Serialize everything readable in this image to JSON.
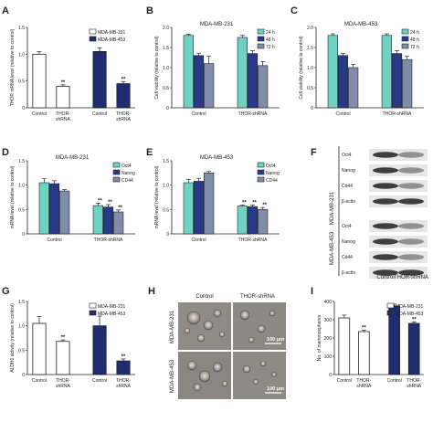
{
  "colors": {
    "white_bar": "#ffffff",
    "navy": "#1f2d6e",
    "teal": "#6fd3c4",
    "navy2": "#283a86",
    "slate": "#7f8da8",
    "axis": "#222222"
  },
  "panels": {
    "A": {
      "letter": "A"
    },
    "B": {
      "letter": "B"
    },
    "C": {
      "letter": "C"
    },
    "D": {
      "letter": "D"
    },
    "E": {
      "letter": "E"
    },
    "F": {
      "letter": "F"
    },
    "G": {
      "letter": "G"
    },
    "H": {
      "letter": "H"
    },
    "I": {
      "letter": "I"
    }
  },
  "chart_data": [
    {
      "id": "A",
      "type": "bar",
      "ylabel": "THOR mRNA level (relative to control)",
      "ylim": [
        0,
        1.5
      ],
      "yticks": [
        "0",
        "0.5",
        "1.0",
        "1.5"
      ],
      "groups": [
        "MDA-MB-231",
        "MDA-MB-453"
      ],
      "categories": [
        "Control",
        "THOR-shRNA",
        "Control",
        "THOR-shRNA"
      ],
      "values": [
        1.0,
        0.4,
        1.05,
        0.45
      ],
      "errors": [
        0.05,
        0.03,
        0.07,
        0.04
      ],
      "fills": [
        "white_bar",
        "white_bar",
        "navy",
        "navy"
      ],
      "sig": [
        "",
        "**",
        "",
        "**"
      ],
      "legend": [
        {
          "name": "MDA-MB-231",
          "fill": "white_bar"
        },
        {
          "name": "MDA-MB-453",
          "fill": "navy"
        }
      ]
    },
    {
      "id": "B",
      "type": "bar",
      "title": "MDA-MB-231",
      "ylabel": "Cell viability (relative to control)",
      "ylim": [
        0,
        2.0
      ],
      "yticks": [
        "0",
        "0.5",
        "1.0",
        "1.5",
        "2.0"
      ],
      "categories": [
        "Control",
        "THOR-shRNA"
      ],
      "series": [
        {
          "name": "24 h",
          "values": [
            1.8,
            1.75
          ],
          "errors": [
            0.03,
            0.05
          ]
        },
        {
          "name": "48 h",
          "values": [
            1.3,
            1.35
          ],
          "errors": [
            0.06,
            0.07
          ]
        },
        {
          "name": "72 h",
          "values": [
            1.1,
            1.05
          ],
          "errors": [
            0.18,
            0.1
          ]
        }
      ],
      "fills": [
        "teal",
        "navy2",
        "slate"
      ]
    },
    {
      "id": "C",
      "type": "bar",
      "title": "MDA-MB-453",
      "ylabel": "Cell viability (relative to control)",
      "ylim": [
        0,
        2.0
      ],
      "yticks": [
        "0",
        "0.5",
        "1.0",
        "1.5",
        "2.0"
      ],
      "categories": [
        "Control",
        "THOR-shRNA"
      ],
      "series": [
        {
          "name": "24 h",
          "values": [
            1.8,
            1.8
          ],
          "errors": [
            0.04,
            0.04
          ]
        },
        {
          "name": "48 h",
          "values": [
            1.3,
            1.35
          ],
          "errors": [
            0.05,
            0.07
          ]
        },
        {
          "name": "72 h",
          "values": [
            1.0,
            1.2
          ],
          "errors": [
            0.08,
            0.08
          ]
        }
      ],
      "fills": [
        "teal",
        "navy2",
        "slate"
      ]
    },
    {
      "id": "D",
      "type": "bar",
      "title": "MDA-MB-231",
      "ylabel": "mRNA level (relative to control)",
      "ylim": [
        0,
        1.5
      ],
      "yticks": [
        "0",
        "0.5",
        "1.0",
        "1.5"
      ],
      "categories": [
        "Control",
        "THOR-shRNA"
      ],
      "series": [
        {
          "name": "Oct4",
          "values": [
            1.05,
            0.58
          ],
          "errors": [
            0.08,
            0.05
          ],
          "sig": [
            "",
            "**"
          ]
        },
        {
          "name": "Nanog",
          "values": [
            1.03,
            0.55
          ],
          "errors": [
            0.06,
            0.05
          ],
          "sig": [
            "",
            "**"
          ]
        },
        {
          "name": "CD44",
          "values": [
            0.88,
            0.45
          ],
          "errors": [
            0.03,
            0.04
          ],
          "sig": [
            "",
            "**"
          ]
        }
      ],
      "fills": [
        "teal",
        "navy2",
        "slate"
      ]
    },
    {
      "id": "E",
      "type": "bar",
      "title": "MDA-MB-453",
      "ylabel": "mRNA level (relative to control)",
      "ylim": [
        0,
        1.5
      ],
      "yticks": [
        "0",
        "0.5",
        "1.0",
        "1.5"
      ],
      "categories": [
        "Control",
        "THOR-shRNA"
      ],
      "series": [
        {
          "name": "Oct4",
          "values": [
            1.05,
            0.57
          ],
          "errors": [
            0.07,
            0.02
          ],
          "sig": [
            "",
            "**"
          ]
        },
        {
          "name": "Nanog",
          "values": [
            1.08,
            0.56
          ],
          "errors": [
            0.06,
            0.03
          ],
          "sig": [
            "",
            "**"
          ]
        },
        {
          "name": "CD44",
          "values": [
            1.25,
            0.5
          ],
          "errors": [
            0.03,
            0.04
          ],
          "sig": [
            "",
            "**"
          ]
        }
      ],
      "fills": [
        "teal",
        "navy2",
        "slate"
      ]
    },
    {
      "id": "G",
      "type": "bar",
      "ylabel": "ALDH1 activity (relative to control)",
      "ylim": [
        0,
        1.5
      ],
      "yticks": [
        "0",
        "0.5",
        "1.0",
        "1.5"
      ],
      "groups": [
        "MDA-MB-231",
        "MDA-MB-453"
      ],
      "categories": [
        "Control",
        "THOR-shRNA",
        "Control",
        "THOR-shRNA"
      ],
      "values": [
        1.05,
        0.68,
        1.0,
        0.28
      ],
      "errors": [
        0.14,
        0.03,
        0.2,
        0.04
      ],
      "fills": [
        "white_bar",
        "white_bar",
        "navy",
        "navy"
      ],
      "sig": [
        "",
        "**",
        "",
        "**"
      ],
      "legend": [
        {
          "name": "MDA-MB-231",
          "fill": "white_bar"
        },
        {
          "name": "MDA-MB-453",
          "fill": "navy"
        }
      ]
    },
    {
      "id": "I",
      "type": "bar",
      "ylabel": "No. of mammospheres",
      "ylim": [
        0,
        400
      ],
      "yticks": [
        "0",
        "100",
        "200",
        "300",
        "400"
      ],
      "groups": [
        "MDA-MB-231",
        "MDA-MB-453"
      ],
      "categories": [
        "Control",
        "THOR-shRNA",
        "Control",
        "THOR-shRNA"
      ],
      "values": [
        310,
        235,
        375,
        280
      ],
      "errors": [
        15,
        8,
        10,
        8
      ],
      "fills": [
        "white_bar",
        "white_bar",
        "navy",
        "navy"
      ],
      "sig": [
        "",
        "**",
        "",
        "**"
      ],
      "legend": [
        {
          "name": "MDA-MB-231",
          "fill": "white_bar"
        },
        {
          "name": "MDA-MB-453",
          "fill": "navy"
        }
      ]
    }
  ],
  "western_blot": {
    "group1_label": "MDA-MB-231",
    "group2_label": "MDA-MB-453",
    "rows1": [
      "Oct4",
      "Nanog",
      "Cd44",
      "β-actin"
    ],
    "rows2": [
      "Oct4",
      "Nanog",
      "Cd44",
      "β-actin"
    ],
    "lanes": [
      "Control",
      "THOR-shRNA"
    ]
  },
  "microscopy": {
    "cols": [
      "Control",
      "THOR-shRNA"
    ],
    "rows": [
      "MDA-MB-231",
      "MDA-MB-453"
    ],
    "scale_bar": "100 μm"
  }
}
